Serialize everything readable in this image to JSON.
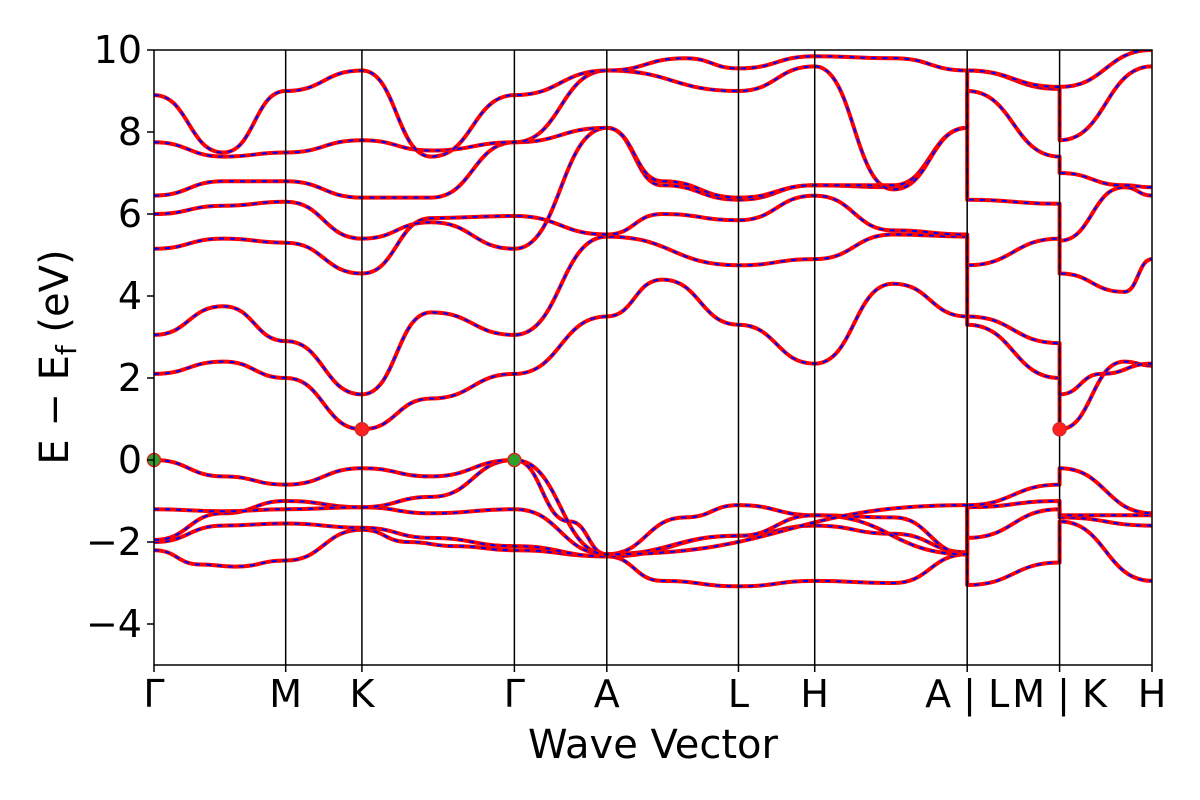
{
  "chart_data": {
    "type": "line",
    "xlabel": "Wave Vector",
    "ylabel": "E − E",
    "ylabel_sub": "f",
    "ylabel_unit": " (eV)",
    "ylim": [
      -5,
      10
    ],
    "yticks": [
      -4,
      -2,
      0,
      2,
      4,
      6,
      8,
      10
    ],
    "ytick_labels": [
      "−4",
      "−2",
      "0",
      "2",
      "4",
      "6",
      "8",
      "10"
    ],
    "kpath": [
      {
        "label": "Γ",
        "x": 0.0
      },
      {
        "label": "M",
        "x": 0.57
      },
      {
        "label": "K",
        "x": 0.9
      },
      {
        "label": "Γ",
        "x": 1.56
      },
      {
        "label": "A",
        "x": 1.96
      },
      {
        "label": "L",
        "x": 2.53
      },
      {
        "label": "H",
        "x": 2.86
      },
      {
        "label": "A | L",
        "x": 3.52
      },
      {
        "label": "M | K",
        "x": 3.92
      },
      {
        "label": "H",
        "x": 4.32
      }
    ],
    "xlim": [
      0,
      4.32
    ],
    "line_colors": {
      "primary": "#ff0000",
      "overlay": "#0000ff"
    },
    "bands": [
      [
        [
          0,
          -2.2
        ],
        [
          0.2,
          -2.55
        ],
        [
          0.35,
          -2.6
        ],
        [
          0.57,
          -2.45
        ],
        [
          0.9,
          -1.7
        ],
        [
          1.1,
          -2.0
        ],
        [
          1.3,
          -2.1
        ],
        [
          1.56,
          -2.2
        ],
        [
          1.96,
          -2.35
        ],
        [
          2.2,
          -2.95
        ],
        [
          2.53,
          -3.08
        ],
        [
          2.86,
          -2.95
        ],
        [
          3.2,
          -3.0
        ],
        [
          3.52,
          -2.3
        ],
        [
          3.52,
          -3.05
        ],
        [
          3.92,
          -2.5
        ],
        [
          3.92,
          -1.5
        ],
        [
          4.32,
          -2.95
        ]
      ],
      [
        [
          0,
          -2.0
        ],
        [
          0.3,
          -1.6
        ],
        [
          0.57,
          -1.55
        ],
        [
          0.9,
          -1.65
        ],
        [
          1.2,
          -1.9
        ],
        [
          1.56,
          -2.1
        ],
        [
          1.96,
          -2.35
        ],
        [
          2.53,
          -1.85
        ],
        [
          2.86,
          -1.6
        ],
        [
          3.2,
          -1.8
        ],
        [
          3.52,
          -2.25
        ],
        [
          3.52,
          -1.9
        ],
        [
          3.92,
          -1.2
        ],
        [
          3.92,
          -1.4
        ],
        [
          4.32,
          -1.6
        ]
      ],
      [
        [
          0,
          -1.95
        ],
        [
          0.3,
          -1.3
        ],
        [
          0.57,
          -1.0
        ],
        [
          0.9,
          -1.15
        ],
        [
          1.2,
          -1.3
        ],
        [
          1.56,
          -1.2
        ],
        [
          1.96,
          -2.3
        ],
        [
          2.3,
          -1.4
        ],
        [
          2.53,
          -1.1
        ],
        [
          2.86,
          -1.35
        ],
        [
          3.2,
          -1.4
        ],
        [
          3.52,
          -2.3
        ],
        [
          3.52,
          -1.15
        ],
        [
          3.92,
          -1.0
        ],
        [
          3.92,
          -1.35
        ],
        [
          4.32,
          -1.35
        ]
      ],
      [
        [
          0,
          -1.2
        ],
        [
          0.3,
          -1.25
        ],
        [
          0.57,
          -1.2
        ],
        [
          0.9,
          -1.15
        ],
        [
          1.2,
          -0.9
        ],
        [
          1.56,
          -0.0
        ],
        [
          1.8,
          -1.5
        ],
        [
          1.96,
          -2.3
        ],
        [
          2.53,
          -1.85
        ],
        [
          2.86,
          -1.35
        ],
        [
          3.52,
          -2.3
        ],
        [
          3.52,
          -1.1
        ],
        [
          3.92,
          -0.6
        ],
        [
          3.92,
          -0.2
        ],
        [
          4.32,
          -1.3
        ]
      ],
      [
        [
          0,
          0.0
        ],
        [
          0.3,
          -0.4
        ],
        [
          0.57,
          -0.6
        ],
        [
          0.9,
          -0.2
        ],
        [
          1.2,
          -0.4
        ],
        [
          1.56,
          0.0
        ],
        [
          1.96,
          -2.3
        ],
        [
          3.52,
          -1.1
        ]
      ],
      [
        [
          0,
          2.1
        ],
        [
          0.3,
          2.4
        ],
        [
          0.57,
          2.0
        ],
        [
          0.9,
          0.75
        ],
        [
          1.2,
          1.5
        ],
        [
          1.56,
          2.1
        ],
        [
          1.96,
          3.5
        ],
        [
          2.2,
          4.4
        ],
        [
          2.53,
          3.3
        ],
        [
          2.86,
          2.35
        ],
        [
          3.2,
          4.3
        ],
        [
          3.52,
          3.5
        ],
        [
          3.52,
          3.3
        ],
        [
          3.92,
          2.0
        ],
        [
          3.92,
          0.75
        ],
        [
          4.2,
          2.4
        ],
        [
          4.32,
          2.3
        ]
      ],
      [
        [
          0,
          3.05
        ],
        [
          0.3,
          3.75
        ],
        [
          0.57,
          2.9
        ],
        [
          0.9,
          1.6
        ],
        [
          1.2,
          3.6
        ],
        [
          1.56,
          3.05
        ],
        [
          1.96,
          5.45
        ],
        [
          2.53,
          4.75
        ],
        [
          2.86,
          4.9
        ],
        [
          3.2,
          5.5
        ],
        [
          3.52,
          5.45
        ],
        [
          3.52,
          3.5
        ],
        [
          3.92,
          2.85
        ],
        [
          3.92,
          1.6
        ],
        [
          4.1,
          2.1
        ],
        [
          4.32,
          2.35
        ]
      ],
      [
        [
          0,
          5.15
        ],
        [
          0.3,
          5.4
        ],
        [
          0.57,
          5.3
        ],
        [
          0.9,
          4.55
        ],
        [
          1.2,
          5.9
        ],
        [
          1.56,
          5.95
        ],
        [
          1.96,
          5.5
        ],
        [
          2.2,
          6.0
        ],
        [
          2.53,
          5.85
        ],
        [
          2.86,
          6.45
        ],
        [
          3.2,
          5.6
        ],
        [
          3.52,
          5.5
        ],
        [
          3.52,
          4.75
        ],
        [
          3.92,
          5.4
        ],
        [
          3.92,
          4.55
        ],
        [
          4.2,
          4.1
        ],
        [
          4.32,
          4.9
        ]
      ],
      [
        [
          0,
          6.0
        ],
        [
          0.3,
          6.2
        ],
        [
          0.57,
          6.3
        ],
        [
          0.9,
          5.4
        ],
        [
          1.2,
          5.8
        ],
        [
          1.56,
          5.15
        ],
        [
          1.96,
          8.1
        ],
        [
          2.2,
          6.7
        ],
        [
          2.53,
          6.35
        ],
        [
          2.86,
          6.7
        ],
        [
          3.2,
          6.65
        ],
        [
          3.52,
          8.1
        ],
        [
          3.52,
          6.35
        ],
        [
          3.92,
          6.25
        ],
        [
          3.92,
          5.35
        ],
        [
          4.2,
          6.65
        ],
        [
          4.32,
          6.45
        ]
      ],
      [
        [
          0,
          6.45
        ],
        [
          0.3,
          6.8
        ],
        [
          0.57,
          6.8
        ],
        [
          0.9,
          6.4
        ],
        [
          1.2,
          6.4
        ],
        [
          1.56,
          7.75
        ],
        [
          1.96,
          8.1
        ],
        [
          2.2,
          6.8
        ],
        [
          2.53,
          6.4
        ],
        [
          2.86,
          6.7
        ],
        [
          3.2,
          6.7
        ],
        [
          3.52,
          8.1
        ],
        [
          3.52,
          9.0
        ],
        [
          3.92,
          7.4
        ],
        [
          3.92,
          7.0
        ],
        [
          4.2,
          6.7
        ],
        [
          4.32,
          6.65
        ]
      ],
      [
        [
          0,
          7.75
        ],
        [
          0.3,
          7.4
        ],
        [
          0.57,
          7.5
        ],
        [
          0.9,
          7.8
        ],
        [
          1.2,
          7.55
        ],
        [
          1.56,
          7.75
        ],
        [
          1.96,
          9.5
        ],
        [
          2.53,
          9.0
        ],
        [
          2.86,
          9.6
        ],
        [
          3.2,
          6.6
        ],
        [
          3.52,
          8.1
        ],
        [
          3.52,
          9.5
        ],
        [
          3.92,
          9.05
        ],
        [
          3.92,
          7.8
        ],
        [
          4.32,
          9.6
        ]
      ],
      [
        [
          0,
          8.9
        ],
        [
          0.3,
          7.5
        ],
        [
          0.57,
          9.0
        ],
        [
          0.9,
          9.5
        ],
        [
          1.2,
          7.4
        ],
        [
          1.56,
          8.9
        ],
        [
          1.96,
          9.5
        ],
        [
          2.3,
          9.8
        ],
        [
          2.53,
          9.55
        ],
        [
          2.86,
          9.85
        ],
        [
          3.2,
          9.8
        ],
        [
          3.52,
          9.5
        ],
        [
          3.92,
          9.1
        ],
        [
          4.32,
          10.0
        ]
      ]
    ],
    "markers": [
      {
        "x": 0.0,
        "y": 0.0,
        "color": "#2ca02c",
        "edge": "#d62728"
      },
      {
        "x": 1.56,
        "y": 0.0,
        "color": "#2ca02c",
        "edge": "#d62728"
      },
      {
        "x": 0.9,
        "y": 0.75,
        "color": "#ff2222",
        "edge": "#d62728"
      },
      {
        "x": 3.92,
        "y": 0.75,
        "color": "#ff2222",
        "edge": "#d62728"
      }
    ]
  }
}
